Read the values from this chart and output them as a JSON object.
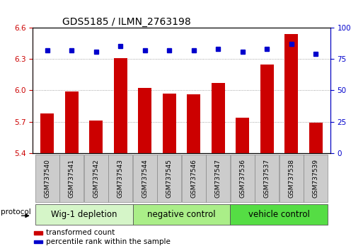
{
  "title": "GDS5185 / ILMN_2763198",
  "samples": [
    "GSM737540",
    "GSM737541",
    "GSM737542",
    "GSM737543",
    "GSM737544",
    "GSM737545",
    "GSM737546",
    "GSM737547",
    "GSM737536",
    "GSM737537",
    "GSM737538",
    "GSM737539"
  ],
  "bar_values": [
    5.78,
    5.99,
    5.71,
    6.31,
    6.02,
    5.97,
    5.96,
    6.07,
    5.74,
    6.25,
    6.54,
    5.69
  ],
  "dot_values": [
    82,
    82,
    81,
    85,
    82,
    82,
    82,
    83,
    81,
    83,
    87,
    79
  ],
  "ylim_left": [
    5.4,
    6.6
  ],
  "ylim_right": [
    0,
    100
  ],
  "yticks_left": [
    5.4,
    5.7,
    6.0,
    6.3,
    6.6
  ],
  "yticks_right": [
    0,
    25,
    50,
    75,
    100
  ],
  "groups": [
    {
      "label": "Wig-1 depletion",
      "start": 0,
      "end": 4,
      "color": "#d5f5c8"
    },
    {
      "label": "negative control",
      "start": 4,
      "end": 8,
      "color": "#aaee88"
    },
    {
      "label": "vehicle control",
      "start": 8,
      "end": 12,
      "color": "#55dd44"
    }
  ],
  "bar_color": "#cc0000",
  "dot_color": "#0000cc",
  "bar_width": 0.55,
  "grid_color": "#888888",
  "bg_color": "#ffffff",
  "sample_box_color": "#cccccc",
  "title_fontsize": 10,
  "tick_fontsize": 7.5,
  "group_fontsize": 8.5,
  "label_fontsize": 6.5,
  "legend_fontsize": 7.5
}
